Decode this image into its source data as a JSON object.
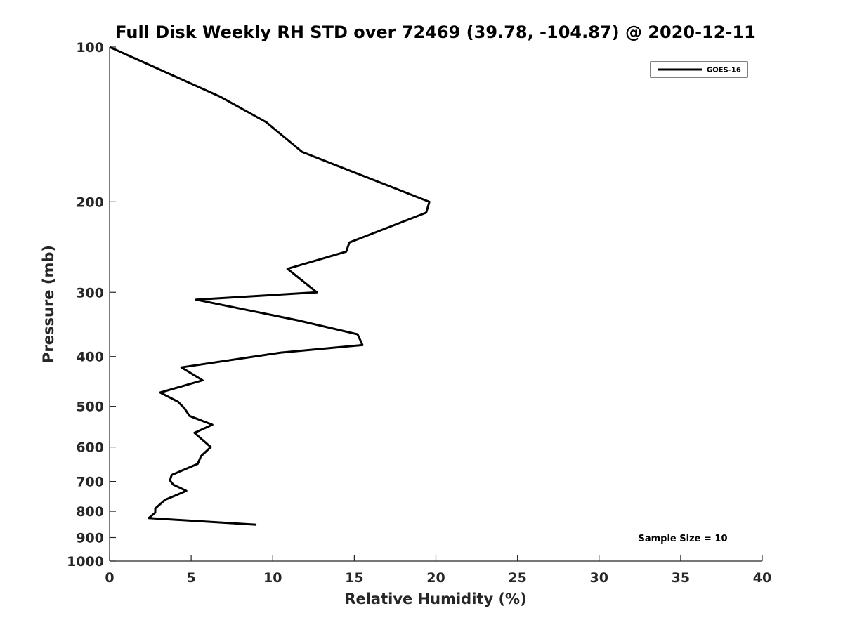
{
  "chart_data": {
    "type": "line",
    "title": "Full Disk Weekly RH STD over 72469 (39.78, -104.87) @ 2020-12-11",
    "xlabel": "Relative Humidity (%)",
    "ylabel": "Pressure (mb)",
    "xlim": [
      0,
      40
    ],
    "ylim": [
      100,
      1000
    ],
    "y_scale": "log",
    "y_reversed": true,
    "grid": false,
    "legend_position": "top-right",
    "x_ticks": [
      "0",
      "5",
      "10",
      "15",
      "20",
      "25",
      "30",
      "35",
      "40"
    ],
    "x_tick_values": [
      0,
      5,
      10,
      15,
      20,
      25,
      30,
      35,
      40
    ],
    "y_ticks": [
      "100",
      "200",
      "300",
      "400",
      "500",
      "600",
      "700",
      "800",
      "900",
      "1000"
    ],
    "y_tick_values": [
      100,
      200,
      300,
      400,
      500,
      600,
      700,
      800,
      900,
      1000
    ],
    "series": [
      {
        "name": "GOES-16",
        "color": "#000000",
        "points": [
          [
            0.0,
            100
          ],
          [
            6.8,
            125
          ],
          [
            9.6,
            140
          ],
          [
            11.8,
            160
          ],
          [
            19.6,
            200
          ],
          [
            19.4,
            210
          ],
          [
            14.7,
            240
          ],
          [
            14.5,
            250
          ],
          [
            10.9,
            270
          ],
          [
            12.7,
            300
          ],
          [
            5.3,
            310
          ],
          [
            11.5,
            340
          ],
          [
            15.2,
            362
          ],
          [
            15.5,
            380
          ],
          [
            10.5,
            393
          ],
          [
            4.4,
            420
          ],
          [
            5.7,
            445
          ],
          [
            3.1,
            470
          ],
          [
            4.2,
            490
          ],
          [
            4.6,
            505
          ],
          [
            4.9,
            522
          ],
          [
            6.3,
            543
          ],
          [
            5.2,
            563
          ],
          [
            6.2,
            600
          ],
          [
            5.6,
            625
          ],
          [
            5.4,
            647
          ],
          [
            3.8,
            680
          ],
          [
            3.7,
            697
          ],
          [
            3.9,
            710
          ],
          [
            4.7,
            730
          ],
          [
            3.4,
            760
          ],
          [
            2.8,
            790
          ],
          [
            2.8,
            805
          ],
          [
            2.4,
            825
          ],
          [
            9.0,
            850
          ]
        ]
      }
    ],
    "annotations": [
      {
        "text": "Sample Size = 10",
        "x": 35.2,
        "y": 895
      }
    ]
  }
}
